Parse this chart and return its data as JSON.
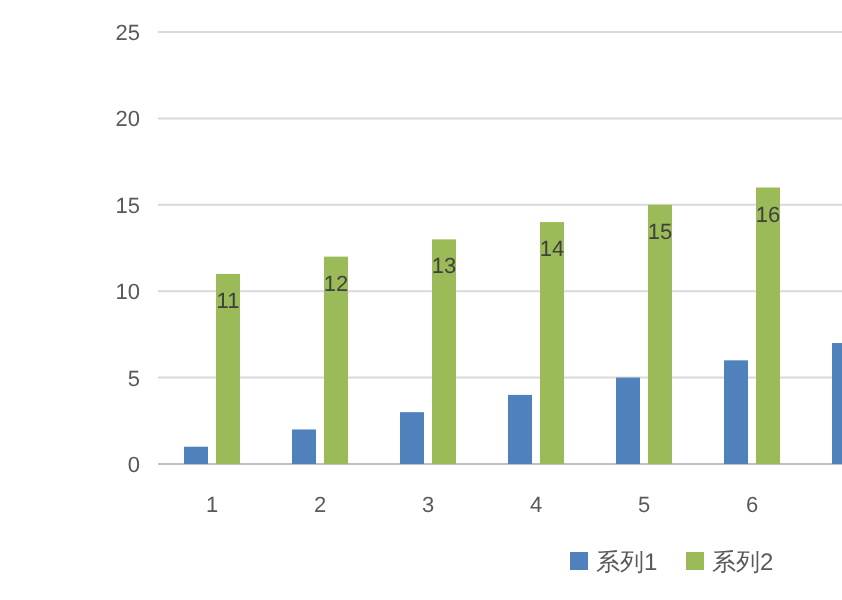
{
  "chart_data": {
    "type": "bar",
    "categories": [
      "1",
      "2",
      "3",
      "4",
      "5",
      "6",
      null
    ],
    "series": [
      {
        "name": "系列1",
        "color": "#4f81bd",
        "values": [
          1,
          2,
          3,
          4,
          5,
          6,
          7
        ]
      },
      {
        "name": "系列2",
        "color": "#9bbb59",
        "values": [
          11,
          12,
          13,
          14,
          15,
          16,
          null
        ],
        "value_labels": [
          "11",
          "12",
          "13",
          "14",
          "15",
          "16",
          null
        ]
      }
    ],
    "ylim": [
      0,
      25
    ],
    "yticks": [
      0,
      5,
      10,
      15,
      20,
      25
    ],
    "grid": "y",
    "legend": "bottom right"
  }
}
